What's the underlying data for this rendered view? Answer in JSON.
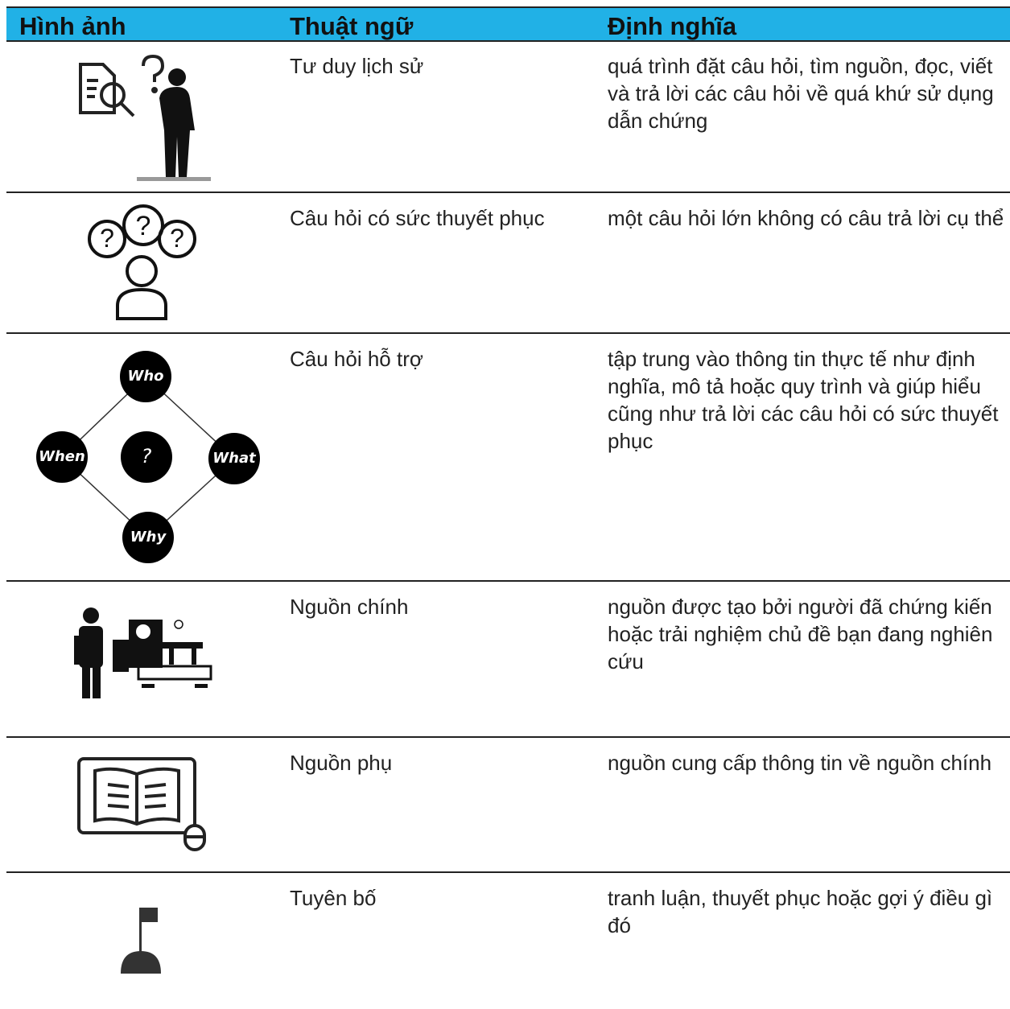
{
  "table": {
    "headers": [
      "Hình ảnh",
      "Thuật ngữ",
      "Định nghĩa"
    ],
    "rows": [
      {
        "term": "Tư duy lịch sử",
        "definition": "quá trình đặt câu hỏi, tìm nguồn, đọc, viết và trả lời các câu hỏi về quá khứ sử dụng dẫn chứng"
      },
      {
        "term": "Câu hỏi có sức thuyết phục",
        "definition": "một câu hỏi lớn không có câu trả lời cụ thể"
      },
      {
        "term": "Câu hỏi hỗ trợ",
        "definition": "tập trung vào thông tin thực tế như định nghĩa, mô tả hoặc quy trình và giúp hiểu cũng như trả lời các câu hỏi có sức thuyết phục",
        "diagram": [
          "Who",
          "When",
          "?",
          "What",
          "Why"
        ]
      },
      {
        "term": "Nguồn chính",
        "definition": "nguồn được tạo bởi người đã chứng kiến hoặc trải nghiệm chủ đề bạn đang nghiên cứu"
      },
      {
        "term": "Nguồn phụ",
        "definition": "nguồn cung cấp thông tin về nguồn chính"
      },
      {
        "term": "Tuyên bố",
        "definition": "tranh luận, thuyết phục hoặc gợi ý điều gì đó"
      }
    ]
  }
}
